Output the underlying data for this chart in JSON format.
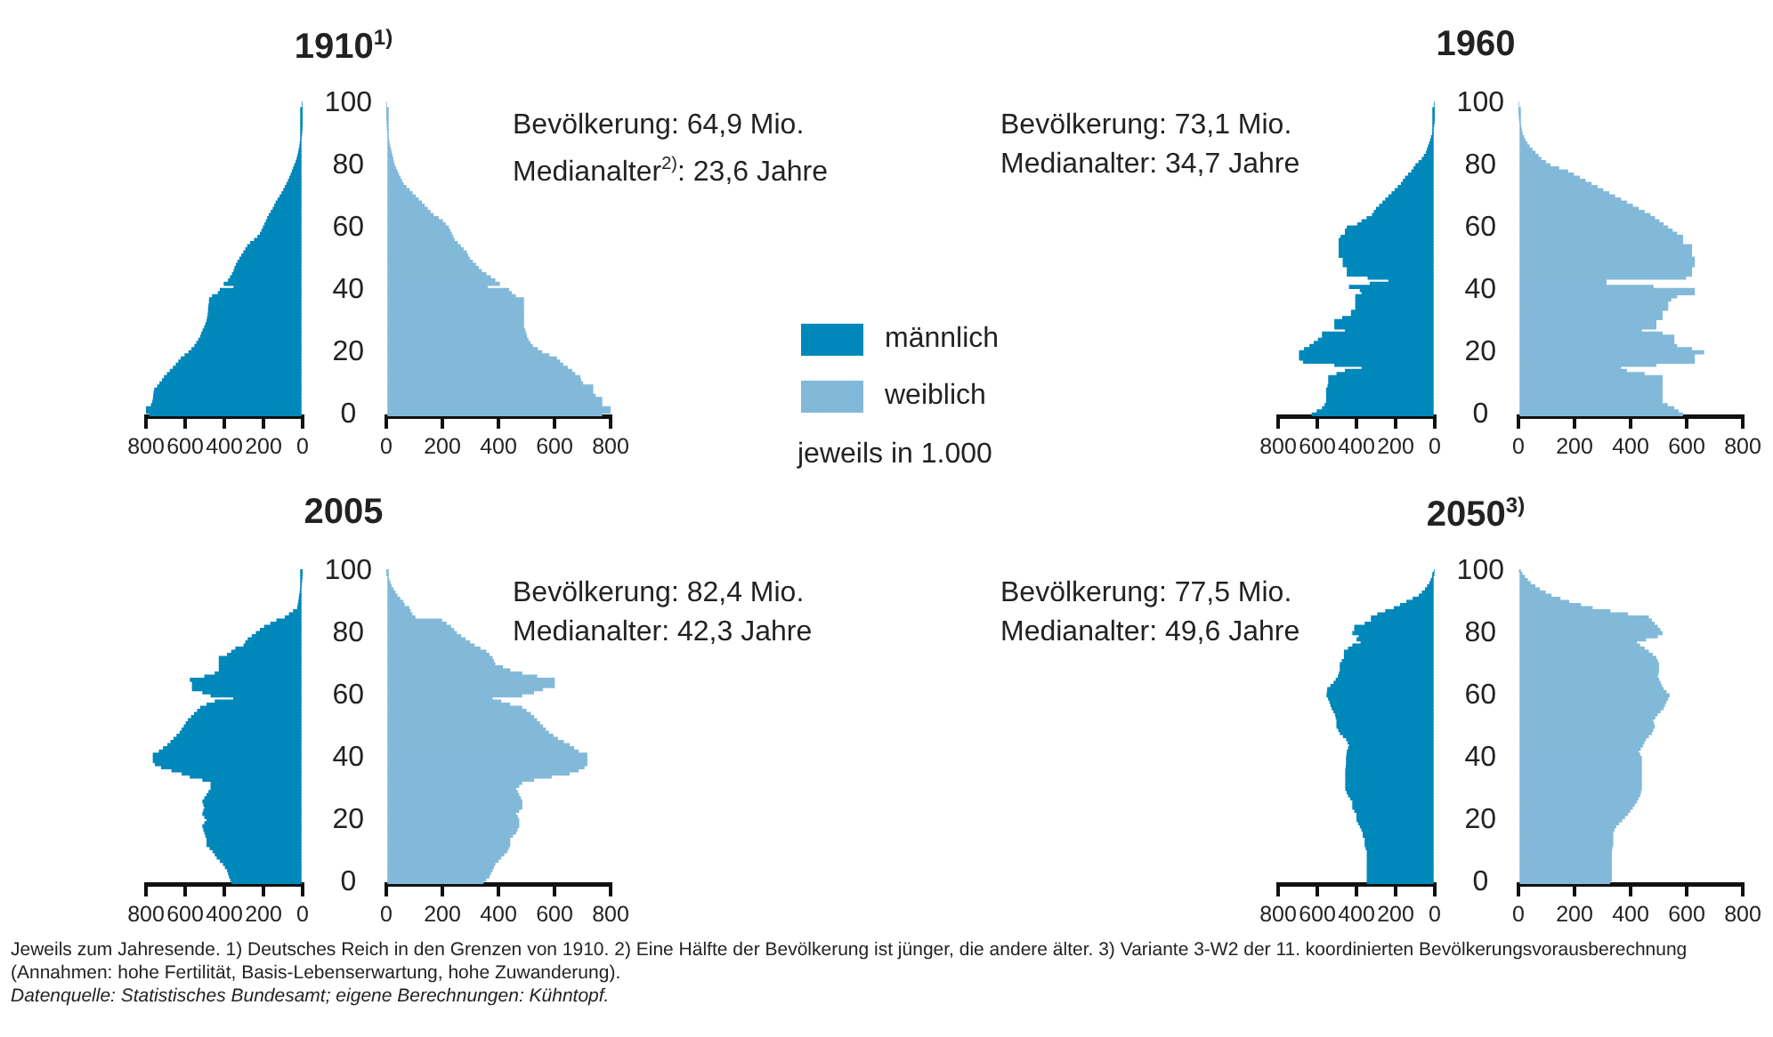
{
  "chart_data": [
    {
      "type": "bar",
      "orientation": "horizontal",
      "title": "1910$^{1)}$",
      "legend": "right",
      "categories": [
        "100",
        null,
        null,
        null,
        null,
        null,
        null,
        null,
        null,
        null,
        null,
        null,
        null,
        null,
        null,
        null,
        null,
        null,
        null,
        null,
        "80",
        null,
        null,
        null,
        null,
        null,
        null,
        null,
        null,
        null,
        null,
        null,
        null,
        null,
        null,
        null,
        null,
        null,
        null,
        null,
        "60",
        null,
        null,
        null,
        null,
        null,
        null,
        null,
        null,
        null,
        null,
        null,
        null,
        null,
        null,
        null,
        null,
        null,
        null,
        null,
        "40",
        null,
        null,
        null,
        null,
        null,
        null,
        null,
        null,
        null,
        null,
        null,
        null,
        null,
        null,
        null,
        null,
        null,
        null,
        null,
        "20",
        null,
        null,
        null,
        null,
        null,
        null,
        null,
        null,
        null,
        null,
        null,
        null,
        null,
        null,
        null,
        null,
        null,
        null,
        null,
        "0"
      ],
      "series": [
        {
          "name": "männlich",
          "color": "#0088bb",
          "values": [
            0,
            0,
            1,
            1,
            1,
            2,
            2,
            3,
            4,
            5,
            6,
            8,
            10,
            12,
            14,
            17,
            20,
            24,
            28,
            33,
            40,
            46,
            52,
            58,
            65,
            72,
            80,
            88,
            96,
            105,
            115,
            125,
            135,
            142,
            150,
            160,
            170,
            178,
            185,
            192,
            200,
            207,
            215,
            228,
            245,
            265,
            280,
            290,
            300,
            310,
            320,
            330,
            338,
            345,
            350,
            358,
            368,
            378,
            400,
            350,
            420,
            430,
            460,
            475,
            475,
            478,
            480,
            480,
            482,
            485,
            488,
            494,
            500,
            508,
            515,
            520,
            530,
            540,
            550,
            565,
            580,
            600,
            620,
            632,
            645,
            660,
            675,
            690,
            705,
            715,
            728,
            740,
            755,
            758,
            760,
            762,
            765,
            772,
            800,
            800,
            780
          ]
        },
        {
          "name": "weiblich",
          "color": "#82b9d9",
          "axis": "x2",
          "values": [
            0,
            0,
            1,
            1,
            1,
            2,
            3,
            4,
            4,
            5,
            6,
            7,
            8,
            10,
            12,
            15,
            18,
            20,
            23,
            25,
            28,
            33,
            38,
            43,
            49,
            54,
            60,
            70,
            82,
            92,
            103,
            114,
            125,
            135,
            146,
            156,
            167,
            185,
            200,
            210,
            221,
            226,
            232,
            237,
            242,
            253,
            264,
            274,
            285,
            290,
            296,
            307,
            318,
            328,
            339,
            355,
            371,
            387,
            403,
            360,
            436,
            446,
            460,
            489,
            489,
            489,
            489,
            489,
            489,
            489,
            489,
            489,
            489,
            494,
            497,
            500,
            505,
            512,
            521,
            538,
            554,
            580,
            607,
            618,
            629,
            645,
            661,
            672,
            690,
            693,
            700,
            736,
            736,
            736,
            745,
            768,
            768,
            768,
            800,
            800,
            768
          ]
        }
      ],
      "xlim": [
        800,
        0
      ],
      "xticks": [
        800,
        600,
        400,
        200,
        0
      ],
      "x2lim": [
        0,
        800
      ],
      "x2ticks": [
        0,
        200,
        400,
        600,
        800
      ],
      "annotations": [
        "Bevölkerung: 64,9 Mio.",
        "Medianalter$^{2)}$: 23,6 Jahre",
        "jeweils in 1.000"
      ]
    },
    {
      "type": "bar",
      "orientation": "horizontal",
      "title": "1960",
      "categories": [
        "100",
        null,
        null,
        null,
        null,
        null,
        null,
        null,
        null,
        null,
        null,
        null,
        null,
        null,
        null,
        null,
        null,
        null,
        null,
        null,
        "80",
        null,
        null,
        null,
        null,
        null,
        null,
        null,
        null,
        null,
        null,
        null,
        null,
        null,
        null,
        null,
        null,
        null,
        null,
        null,
        "60",
        null,
        null,
        null,
        null,
        null,
        null,
        null,
        null,
        null,
        null,
        null,
        null,
        null,
        null,
        null,
        null,
        null,
        null,
        null,
        "40",
        null,
        null,
        null,
        null,
        null,
        null,
        null,
        null,
        null,
        null,
        null,
        null,
        null,
        null,
        null,
        null,
        null,
        null,
        null,
        "20",
        null,
        null,
        null,
        null,
        null,
        null,
        null,
        null,
        null,
        null,
        null,
        null,
        null,
        null,
        null,
        null,
        null,
        null,
        null,
        "0"
      ],
      "series": [
        {
          "color": "#0088bb",
          "values": [
            0,
            0,
            1,
            1,
            2,
            3,
            4,
            6,
            8,
            10,
            11,
            16,
            21,
            26,
            32,
            37,
            42,
            53,
            64,
            80,
            96,
            106,
            117,
            133,
            149,
            160,
            170,
            186,
            202,
            218,
            234,
            250,
            265,
            281,
            297,
            308,
            318,
            345,
            371,
            393,
            446,
            456,
            456,
            478,
            488,
            488,
            488,
            488,
            488,
            488,
            467,
            467,
            467,
            446,
            446,
            446,
            340,
            234,
            329,
            435,
            380,
            371,
            403,
            403,
            403,
            403,
            403,
            425,
            425,
            470,
            510,
            510,
            510,
            456,
            573,
            573,
            594,
            615,
            637,
            665,
            690,
            690,
            690,
            670,
            510,
            371,
            456,
            499,
            541,
            541,
            541,
            545,
            552,
            552,
            552,
            552,
            552,
            560,
            573,
            600,
            626
          ]
        },
        {
          "color": "#82b9d9",
          "axis": "x2",
          "values": [
            0,
            0,
            1,
            2,
            3,
            4,
            5,
            7,
            9,
            11,
            13,
            18,
            23,
            30,
            38,
            48,
            59,
            70,
            80,
            96,
            112,
            143,
            175,
            196,
            217,
            238,
            259,
            280,
            301,
            322,
            343,
            364,
            385,
            406,
            427,
            448,
            469,
            485,
            501,
            516,
            532,
            548,
            564,
            585,
            585,
            585,
            617,
            617,
            617,
            617,
            627,
            627,
            627,
            617,
            617,
            617,
            596,
            312,
            312,
            480,
            627,
            627,
            564,
            543,
            532,
            532,
            532,
            512,
            512,
            512,
            490,
            490,
            490,
            438,
            512,
            554,
            554,
            554,
            564,
            617,
            660,
            627,
            627,
            627,
            490,
            364,
            385,
            448,
            512,
            512,
            512,
            512,
            512,
            512,
            512,
            512,
            512,
            530,
            554,
            570,
            585
          ]
        }
      ],
      "xlim": [
        800,
        0
      ],
      "xticks": [
        800,
        600,
        400,
        200,
        0
      ],
      "x2lim": [
        0,
        800
      ],
      "x2ticks": [
        0,
        200,
        400,
        600,
        800
      ],
      "annotations": [
        "Bevölkerung: 73,1 Mio.",
        "Medianalter: 34,7 Jahre"
      ]
    },
    {
      "type": "bar",
      "orientation": "horizontal",
      "title": "2005",
      "categories": [
        "100",
        null,
        null,
        null,
        null,
        null,
        null,
        null,
        null,
        null,
        null,
        null,
        null,
        null,
        null,
        null,
        null,
        null,
        null,
        null,
        "80",
        null,
        null,
        null,
        null,
        null,
        null,
        null,
        null,
        null,
        null,
        null,
        null,
        null,
        null,
        null,
        null,
        null,
        null,
        null,
        "60",
        null,
        null,
        null,
        null,
        null,
        null,
        null,
        null,
        null,
        null,
        null,
        null,
        null,
        null,
        null,
        null,
        null,
        null,
        null,
        "40",
        null,
        null,
        null,
        null,
        null,
        null,
        null,
        null,
        null,
        null,
        null,
        null,
        null,
        null,
        null,
        null,
        null,
        null,
        null,
        "20",
        null,
        null,
        null,
        null,
        null,
        null,
        null,
        null,
        null,
        null,
        null,
        null,
        null,
        null,
        null,
        null,
        null,
        null,
        null,
        "0"
      ],
      "series": [
        {
          "color": "#0088bb",
          "values": [
            1,
            2,
            4,
            5,
            7,
            8,
            10,
            12,
            15,
            17,
            19,
            22,
            25,
            46,
            67,
            88,
            131,
            162,
            194,
            215,
            236,
            257,
            278,
            290,
            299,
            341,
            362,
            383,
            425,
            425,
            425,
            425,
            425,
            446,
            499,
            573,
            562,
            562,
            562,
            509,
            467,
            352,
            446,
            488,
            520,
            536,
            552,
            567,
            583,
            594,
            604,
            615,
            625,
            641,
            657,
            672,
            688,
            710,
            731,
            762,
            762,
            762,
            752,
            720,
            667,
            615,
            573,
            509,
            467,
            467,
            467,
            478,
            488,
            499,
            509,
            504,
            499,
            504,
            509,
            499,
            488,
            499,
            509,
            504,
            499,
            494,
            488,
            488,
            488,
            472,
            457,
            446,
            436,
            420,
            404,
            394,
            383,
            378,
            373,
            367,
            361
          ]
        },
        {
          "color": "#82b9d9",
          "axis": "x2",
          "values": [
            1,
            2,
            6,
            9,
            13,
            17,
            24,
            31,
            38,
            48,
            59,
            64,
            80,
            85,
            91,
            102,
            197,
            213,
            229,
            240,
            250,
            265,
            281,
            297,
            313,
            334,
            355,
            366,
            377,
            382,
            387,
            414,
            440,
            483,
            536,
            599,
            599,
            599,
            557,
            525,
            483,
            377,
            408,
            440,
            483,
            498,
            514,
            525,
            536,
            546,
            557,
            567,
            578,
            594,
            610,
            631,
            652,
            668,
            684,
            715,
            715,
            715,
            715,
            705,
            684,
            652,
            588,
            525,
            483,
            472,
            461,
            467,
            472,
            478,
            483,
            483,
            483,
            472,
            461,
            467,
            472,
            472,
            472,
            466,
            461,
            450,
            440,
            440,
            440,
            435,
            430,
            419,
            408,
            398,
            387,
            382,
            377,
            371,
            366,
            355,
            345
          ]
        }
      ],
      "xlim": [
        800,
        0
      ],
      "xticks": [
        800,
        600,
        400,
        200,
        0
      ],
      "x2lim": [
        0,
        800
      ],
      "x2ticks": [
        0,
        200,
        400,
        600,
        800
      ],
      "annotations": [
        "Bevölkerung: 82,4 Mio.",
        "Medianalter: 42,3 Jahre"
      ]
    },
    {
      "type": "bar",
      "orientation": "horizontal",
      "title": "2050$^{3)}$",
      "categories": [
        "100",
        null,
        null,
        null,
        null,
        null,
        null,
        null,
        null,
        null,
        null,
        null,
        null,
        null,
        null,
        null,
        null,
        null,
        null,
        null,
        "80",
        null,
        null,
        null,
        null,
        null,
        null,
        null,
        null,
        null,
        null,
        null,
        null,
        null,
        null,
        null,
        null,
        null,
        null,
        null,
        "60",
        null,
        null,
        null,
        null,
        null,
        null,
        null,
        null,
        null,
        null,
        null,
        null,
        null,
        null,
        null,
        null,
        null,
        null,
        null,
        "40",
        null,
        null,
        null,
        null,
        null,
        null,
        null,
        null,
        null,
        null,
        null,
        null,
        null,
        null,
        null,
        null,
        null,
        null,
        null,
        "20",
        null,
        null,
        null,
        null,
        null,
        null,
        null,
        null,
        null,
        null,
        null,
        null,
        null,
        null,
        null,
        null,
        null,
        null,
        null,
        "0"
      ],
      "series": [
        {
          "color": "#0088bb",
          "values": [
            0,
            5,
            11,
            18,
            25,
            36,
            47,
            63,
            79,
            110,
            142,
            174,
            206,
            250,
            291,
            323,
            323,
            355,
            408,
            408,
            418,
            386,
            397,
            376,
            418,
            440,
            461,
            461,
            461,
            472,
            482,
            482,
            482,
            487,
            492,
            503,
            514,
            530,
            546,
            548,
            550,
            542,
            535,
            530,
            524,
            515,
            507,
            503,
            499,
            499,
            499,
            490,
            482,
            466,
            450,
            442,
            435,
            440,
            446,
            448,
            450,
            450,
            450,
            452,
            454,
            454,
            454,
            454,
            454,
            454,
            454,
            447,
            440,
            429,
            418,
            418,
            418,
            408,
            397,
            397,
            397,
            388,
            380,
            372,
            365,
            365,
            355,
            355,
            355,
            350,
            344,
            344,
            344,
            344,
            344,
            344,
            344,
            344,
            344,
            344,
            344
          ]
        },
        {
          "color": "#82b9d9",
          "axis": "x2",
          "values": [
            4,
            12,
            21,
            31,
            42,
            58,
            74,
            95,
            116,
            148,
            179,
            221,
            263,
            326,
            389,
            463,
            474,
            484,
            495,
            504,
            512,
            495,
            453,
            421,
            432,
            448,
            463,
            477,
            490,
            495,
            499,
            499,
            499,
            497,
            495,
            500,
            505,
            510,
            516,
            526,
            537,
            532,
            526,
            521,
            516,
            505,
            495,
            486,
            478,
            481,
            484,
            479,
            474,
            463,
            453,
            447,
            442,
            434,
            427,
            432,
            438,
            438,
            438,
            438,
            438,
            438,
            438,
            438,
            438,
            438,
            438,
            435,
            432,
            426,
            421,
            413,
            406,
            397,
            389,
            378,
            368,
            357,
            347,
            341,
            336,
            336,
            336,
            336,
            336,
            333,
            331,
            331,
            331,
            331,
            331,
            331,
            331,
            331,
            331,
            331,
            325
          ]
        }
      ],
      "xlim": [
        800,
        0
      ],
      "xticks": [
        800,
        600,
        400,
        200,
        0
      ],
      "x2lim": [
        0,
        800
      ],
      "x2ticks": [
        0,
        200,
        400,
        600,
        800
      ],
      "annotations": [
        "Bevölkerung: 77,5 Mio.",
        "Medianalter: 49,6 Jahre",
        "Jeweils zum Jahresende. 1) Deutsches Reich in den Grenzen von 1910. 2) Eine Hälfte der Bevölkerung ist jünger, die andere älter. 3) Variante 3-W2 der 11. koordinierten Bevölkerungsvorausberechnung (Annahmen: hohe Fertilität, Basis-Lebenserwartung, hohe Zuwanderung).",
        "Datenquelle: Statistisches Bundesamt; eigene Berechnungen: Kühntopf."
      ]
    }
  ]
}
